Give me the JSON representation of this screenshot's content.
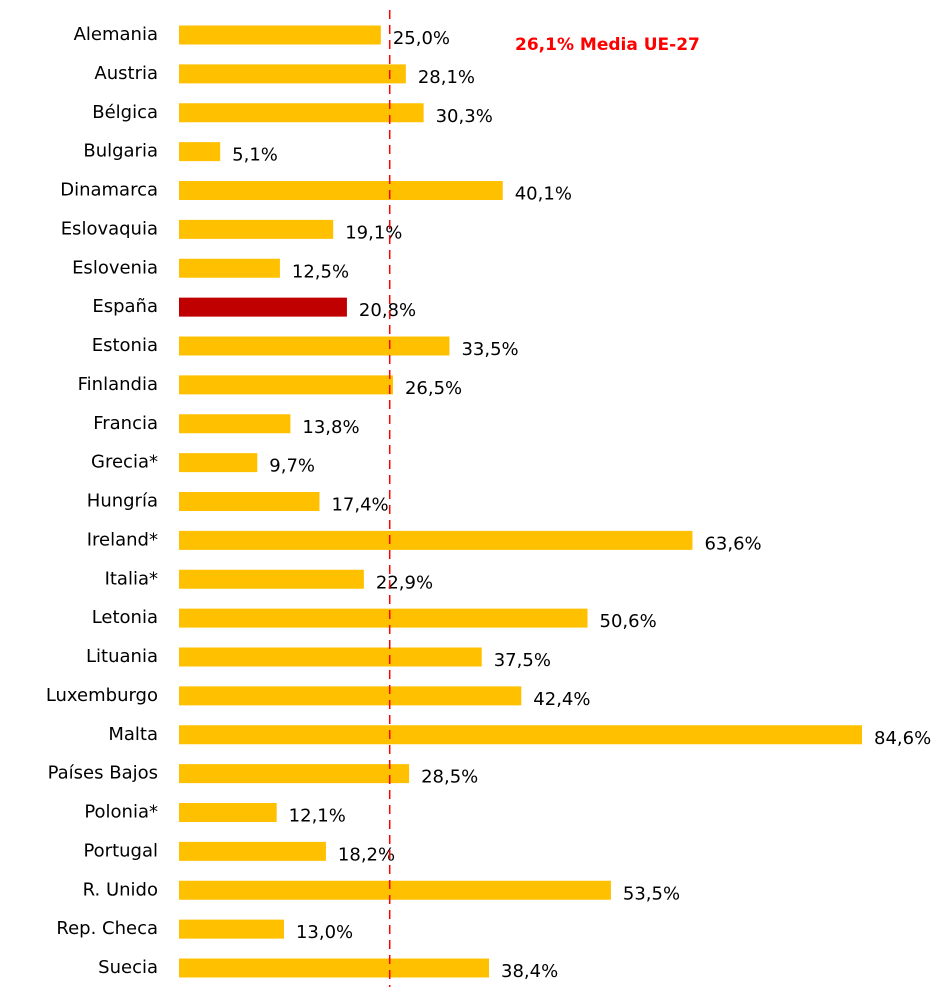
{
  "chart_data": {
    "type": "hbar",
    "categories": [
      "Alemania",
      "Austria",
      "Bélgica",
      "Bulgaria",
      "Dinamarca",
      "Eslovaquia",
      "Eslovenia",
      "España",
      "Estonia",
      "Finlandia",
      "Francia",
      "Grecia*",
      "Hungría",
      "Ireland*",
      "Italia*",
      "Letonia",
      "Lituania",
      "Luxemburgo",
      "Malta",
      "Países Bajos",
      "Polonia*",
      "Portugal",
      "R. Unido",
      "Rep. Checa",
      "Suecia"
    ],
    "values": [
      25.0,
      28.1,
      30.3,
      5.1,
      40.1,
      19.1,
      12.5,
      20.8,
      33.5,
      26.5,
      13.8,
      9.7,
      17.4,
      63.6,
      22.9,
      50.6,
      37.5,
      42.4,
      84.6,
      28.5,
      12.1,
      18.2,
      53.5,
      13.0,
      38.4
    ],
    "value_labels": [
      "25,0%",
      "28,1%",
      "30,3%",
      "5,1%",
      "40,1%",
      "19,1%",
      "12,5%",
      "20,8%",
      "33,5%",
      "26,5%",
      "13,8%",
      "9,7%",
      "17,4%",
      "63,6%",
      "22,9%",
      "50,6%",
      "37,5%",
      "42,4%",
      "84,6%",
      "28,5%",
      "12,1%",
      "18,2%",
      "53,5%",
      "13,0%",
      "38,4%"
    ],
    "colors": [
      "#ffc000",
      "#ffc000",
      "#ffc000",
      "#ffc000",
      "#ffc000",
      "#ffc000",
      "#ffc000",
      "#c00000",
      "#ffc000",
      "#ffc000",
      "#ffc000",
      "#ffc000",
      "#ffc000",
      "#ffc000",
      "#ffc000",
      "#ffc000",
      "#ffc000",
      "#ffc000",
      "#ffc000",
      "#ffc000",
      "#ffc000",
      "#ffc000",
      "#ffc000",
      "#ffc000",
      "#ffc000"
    ],
    "mean_line": {
      "value": 26.1,
      "label": "26,1% Media UE-27",
      "color": "#ff0000"
    }
  }
}
